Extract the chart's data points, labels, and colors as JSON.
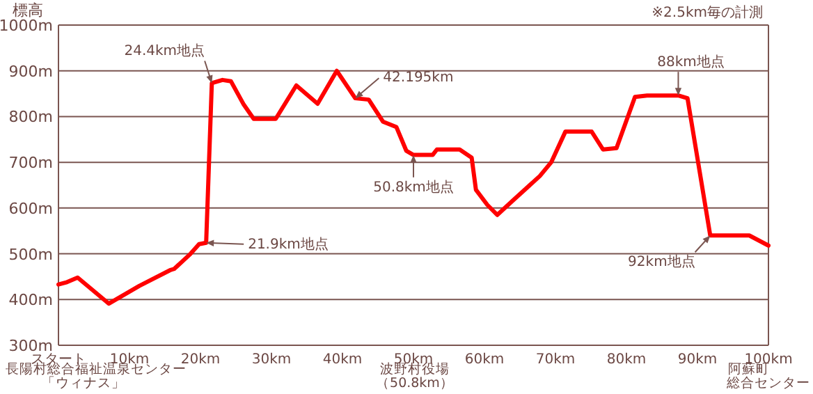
{
  "chart_data": {
    "type": "line",
    "ylabel": "標高",
    "x": [
      0,
      1.2,
      2.7,
      7.1,
      11.4,
      15.7,
      16.3,
      18.6,
      19.8,
      20.8,
      21.6,
      23.1,
      24.3,
      26.1,
      27.5,
      30.6,
      33.5,
      36.5,
      39.2,
      41.8,
      43.7,
      45.7,
      47.6,
      49.0,
      50.0,
      52.7,
      53.3,
      56.5,
      58.2,
      58.8,
      60.4,
      61.8,
      63.9,
      67.8,
      69.4,
      71.4,
      75.1,
      76.7,
      78.6,
      81.2,
      82.9,
      87.3,
      88.6,
      91.8,
      97.3,
      100
    ],
    "series": [
      {
        "color": "#ff0000",
        "values": [
          433,
          438,
          448,
          391,
          430,
          464,
          467,
          500,
          521,
          524,
          873,
          880,
          877,
          826,
          795,
          795,
          868,
          828,
          900,
          840,
          837,
          789,
          777,
          725,
          716,
          716,
          728,
          728,
          710,
          640,
          607,
          585,
          615,
          670,
          700,
          767,
          767,
          728,
          731,
          843,
          846,
          846,
          840,
          540,
          540,
          518
        ]
      }
    ],
    "xlim": [
      0,
      100
    ],
    "xticks": [
      {
        "value": 0,
        "label": "スタート"
      },
      {
        "value": 10,
        "label": "10km"
      },
      {
        "value": 20,
        "label": "20km"
      },
      {
        "value": 30,
        "label": "30km"
      },
      {
        "value": 40,
        "label": "40km"
      },
      {
        "value": 50,
        "label": "50km"
      },
      {
        "value": 60,
        "label": "60km"
      },
      {
        "value": 70,
        "label": "70km"
      },
      {
        "value": 80,
        "label": "80km"
      },
      {
        "value": 90,
        "label": "90km"
      },
      {
        "value": 100,
        "label": "100km"
      }
    ],
    "ylim": [
      300,
      1000
    ],
    "yticks": [
      {
        "value": 300,
        "label": "300m"
      },
      {
        "value": 400,
        "label": "400m"
      },
      {
        "value": 500,
        "label": "500m"
      },
      {
        "value": 600,
        "label": "600m"
      },
      {
        "value": 700,
        "label": "700m"
      },
      {
        "value": 800,
        "label": "800m"
      },
      {
        "value": 900,
        "label": "900m"
      },
      {
        "value": 1000,
        "label": "1000m"
      }
    ],
    "grid": "y",
    "marker": "none",
    "line_style": "solid",
    "annotations": [
      "※2.5km毎の計測",
      {
        "text": "24.4km地点",
        "x": 21.6,
        "y": 873
      },
      {
        "text": "21.9km地点",
        "x": 20.8,
        "y": 524
      },
      {
        "text": "42.195km",
        "x": 41.8,
        "y": 840
      },
      {
        "text": "50.8km地点",
        "x": 50.0,
        "y": 716
      },
      {
        "text": "88km地点",
        "x": 87.3,
        "y": 846
      },
      {
        "text": "92km地点",
        "x": 91.8,
        "y": 540
      },
      "長陽村総合福祉温泉センター",
      "「ウィナス」",
      "波野村役場",
      "（50.8km）",
      "阿蘇町",
      "総合センター"
    ]
  }
}
